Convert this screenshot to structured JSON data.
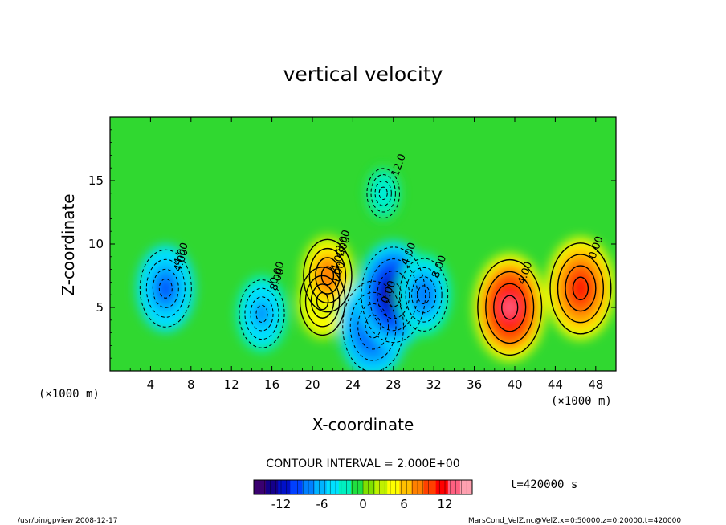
{
  "chart_data": {
    "type": "heatmap",
    "title": "vertical velocity",
    "xlabel": "X-coordinate",
    "ylabel": "Z-coordinate",
    "x_unit": "(×1000 m)",
    "y_unit": "(×1000 m)",
    "xlim": [
      0,
      50
    ],
    "ylim": [
      0,
      20
    ],
    "x_ticks": [
      4,
      8,
      12,
      16,
      20,
      24,
      28,
      32,
      36,
      40,
      44,
      48
    ],
    "y_ticks": [
      5,
      10,
      15
    ],
    "contour_interval": "CONTOUR INTERVAL = 2.000E+00",
    "time_label": "t=420000 s",
    "colorbar": {
      "min": -16,
      "max": 16,
      "ticks": [
        -12,
        -6,
        0,
        6,
        12
      ],
      "colors": [
        "#3a0070",
        "#14008a",
        "#0010c8",
        "#0040ff",
        "#0080ff",
        "#00b4ff",
        "#00e0ff",
        "#00f0c0",
        "#20e040",
        "#80e000",
        "#c0f000",
        "#ffff00",
        "#ffc000",
        "#ff8000",
        "#ff4000",
        "#ff0000",
        "#ff6080",
        "#ffa0b0"
      ]
    },
    "contour_labels": [
      "4.00",
      "8.00",
      "4.00",
      "4.00",
      "0.00",
      "4.00",
      "8.00",
      "4.00",
      "0.00",
      "12.0",
      "4.00",
      "0.00",
      "4.00",
      "8.00"
    ],
    "features": [
      {
        "x": 5.5,
        "z": 6.5,
        "w": -10
      },
      {
        "x": 15.0,
        "z": 4.5,
        "w": -8
      },
      {
        "x": 21.0,
        "z": 5.5,
        "w": 8
      },
      {
        "x": 21.5,
        "z": 7.5,
        "w": 9
      },
      {
        "x": 26.0,
        "z": 3.5,
        "w": -13
      },
      {
        "x": 28.0,
        "z": 6.0,
        "w": -14
      },
      {
        "x": 31.0,
        "z": 6.0,
        "w": -9
      },
      {
        "x": 39.5,
        "z": 5.0,
        "w": 14
      },
      {
        "x": 46.5,
        "z": 6.5,
        "w": 13
      },
      {
        "x": 27.0,
        "z": 14.0,
        "w": -4
      }
    ]
  },
  "footer": {
    "left": "/usr/bin/gpview   2008-12-17",
    "right": "MarsCond_VelZ.nc@VelZ,x=0:50000,z=0:20000,t=420000"
  }
}
